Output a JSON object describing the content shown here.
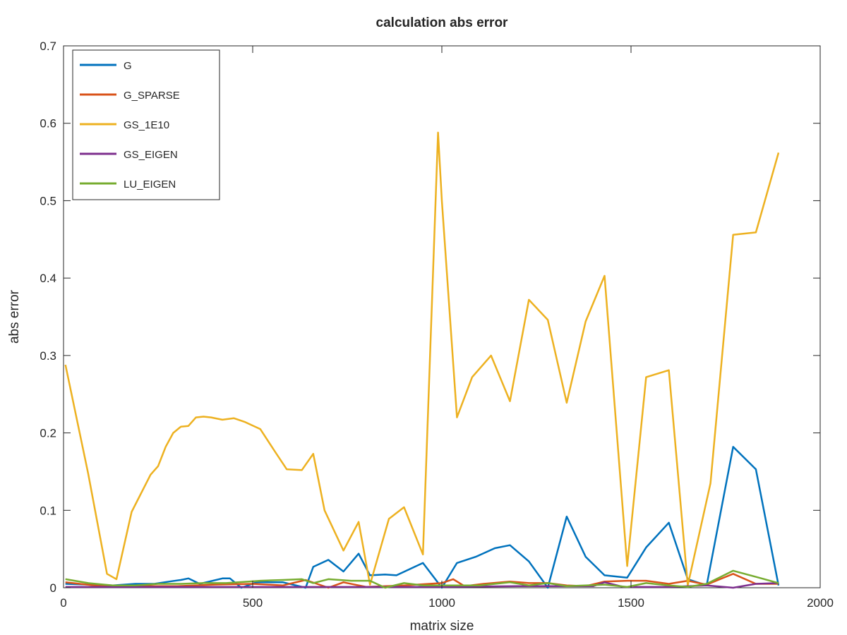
{
  "chart_data": {
    "type": "line",
    "title": "calculation abs error",
    "xlabel": "matrix size",
    "ylabel": "abs error",
    "xlim": [
      0,
      2000
    ],
    "ylim": [
      0,
      0.7
    ],
    "xticks": [
      0,
      500,
      1000,
      1500,
      2000
    ],
    "xtick_labels": [
      "0",
      "500",
      "1000",
      "1500",
      "2000"
    ],
    "yticks": [
      0,
      0.1,
      0.2,
      0.3,
      0.4,
      0.5,
      0.6,
      0.7
    ],
    "ytick_labels": [
      "0",
      "0.1",
      "0.2",
      "0.3",
      "0.4",
      "0.5",
      "0.6",
      "0.7"
    ],
    "grid": false,
    "legend_position": "top-left",
    "series": [
      {
        "name": "G",
        "color": "#0072BD",
        "x": [
          5,
          130,
          190,
          240,
          280,
          310,
          330,
          360,
          420,
          440,
          470,
          510,
          580,
          640,
          660,
          700,
          740,
          780,
          810,
          850,
          880,
          950,
          1000,
          1040,
          1090,
          1140,
          1180,
          1230,
          1280,
          1330,
          1380,
          1430,
          1490,
          1540,
          1600,
          1650,
          1700,
          1770,
          1830,
          1890
        ],
        "y": [
          0.005,
          0.003,
          0.005,
          0.005,
          0.008,
          0.01,
          0.012,
          0.005,
          0.012,
          0.012,
          0.0,
          0.007,
          0.007,
          0.0,
          0.027,
          0.036,
          0.021,
          0.044,
          0.016,
          0.017,
          0.016,
          0.032,
          0.0,
          0.032,
          0.04,
          0.051,
          0.055,
          0.034,
          0.0,
          0.092,
          0.04,
          0.016,
          0.013,
          0.052,
          0.084,
          0.011,
          0.003,
          0.182,
          0.153,
          0.003
        ]
      },
      {
        "name": "G_SPARSE",
        "color": "#D95319",
        "x": [
          5,
          100,
          200,
          300,
          400,
          500,
          580,
          640,
          700,
          740,
          800,
          900,
          1000,
          1030,
          1060,
          1110,
          1180,
          1230,
          1280,
          1330,
          1380,
          1430,
          1490,
          1540,
          1600,
          1650,
          1700,
          1770,
          1830,
          1890
        ],
        "y": [
          0.007,
          0.002,
          0.002,
          0.002,
          0.004,
          0.005,
          0.003,
          0.01,
          0.0,
          0.007,
          0.001,
          0.003,
          0.006,
          0.011,
          0.002,
          0.005,
          0.008,
          0.006,
          0.006,
          0.003,
          0.002,
          0.008,
          0.009,
          0.009,
          0.005,
          0.009,
          0.004,
          0.018,
          0.005,
          0.005
        ]
      },
      {
        "name": "GS_1E10",
        "color": "#EDB120",
        "x": [
          5,
          65,
          115,
          140,
          180,
          230,
          250,
          270,
          290,
          310,
          330,
          350,
          370,
          390,
          420,
          450,
          480,
          520,
          560,
          590,
          630,
          660,
          690,
          740,
          780,
          810,
          860,
          900,
          950,
          990,
          1000,
          1040,
          1080,
          1130,
          1180,
          1230,
          1280,
          1330,
          1380,
          1430,
          1490,
          1540,
          1600,
          1650,
          1710,
          1770,
          1830,
          1890
        ],
        "y": [
          0.288,
          0.148,
          0.018,
          0.011,
          0.098,
          0.146,
          0.157,
          0.182,
          0.2,
          0.208,
          0.209,
          0.22,
          0.221,
          0.22,
          0.217,
          0.219,
          0.214,
          0.205,
          0.175,
          0.153,
          0.152,
          0.173,
          0.1,
          0.048,
          0.085,
          0.004,
          0.089,
          0.104,
          0.043,
          0.588,
          0.5,
          0.22,
          0.272,
          0.3,
          0.241,
          0.372,
          0.346,
          0.239,
          0.344,
          0.403,
          0.028,
          0.272,
          0.281,
          0.003,
          0.135,
          0.456,
          0.459,
          0.562
        ]
      },
      {
        "name": "GS_EIGEN",
        "color": "#7E2F8E",
        "x": [
          5,
          200,
          400,
          600,
          800,
          1000,
          1200,
          1300,
          1400,
          1430,
          1480,
          1600,
          1700,
          1770,
          1830,
          1890
        ],
        "y": [
          0.001,
          0.001,
          0.001,
          0.001,
          0.001,
          0.001,
          0.002,
          0.002,
          0.002,
          0.007,
          0.001,
          0.001,
          0.003,
          0.0,
          0.005,
          0.006
        ]
      },
      {
        "name": "LU_EIGEN",
        "color": "#77AC30",
        "x": [
          5,
          65,
          130,
          190,
          250,
          310,
          370,
          430,
          490,
          520,
          580,
          630,
          660,
          700,
          760,
          810,
          850,
          900,
          950,
          1000,
          1100,
          1180,
          1230,
          1280,
          1330,
          1380,
          1430,
          1490,
          1540,
          1600,
          1650,
          1700,
          1770,
          1830,
          1890
        ],
        "y": [
          0.011,
          0.006,
          0.003,
          0.003,
          0.005,
          0.005,
          0.006,
          0.006,
          0.008,
          0.009,
          0.01,
          0.011,
          0.006,
          0.011,
          0.009,
          0.009,
          0.0,
          0.006,
          0.003,
          0.003,
          0.003,
          0.007,
          0.003,
          0.006,
          0.002,
          0.003,
          0.004,
          0.001,
          0.006,
          0.003,
          0.001,
          0.005,
          0.022,
          0.014,
          0.006
        ]
      }
    ]
  }
}
